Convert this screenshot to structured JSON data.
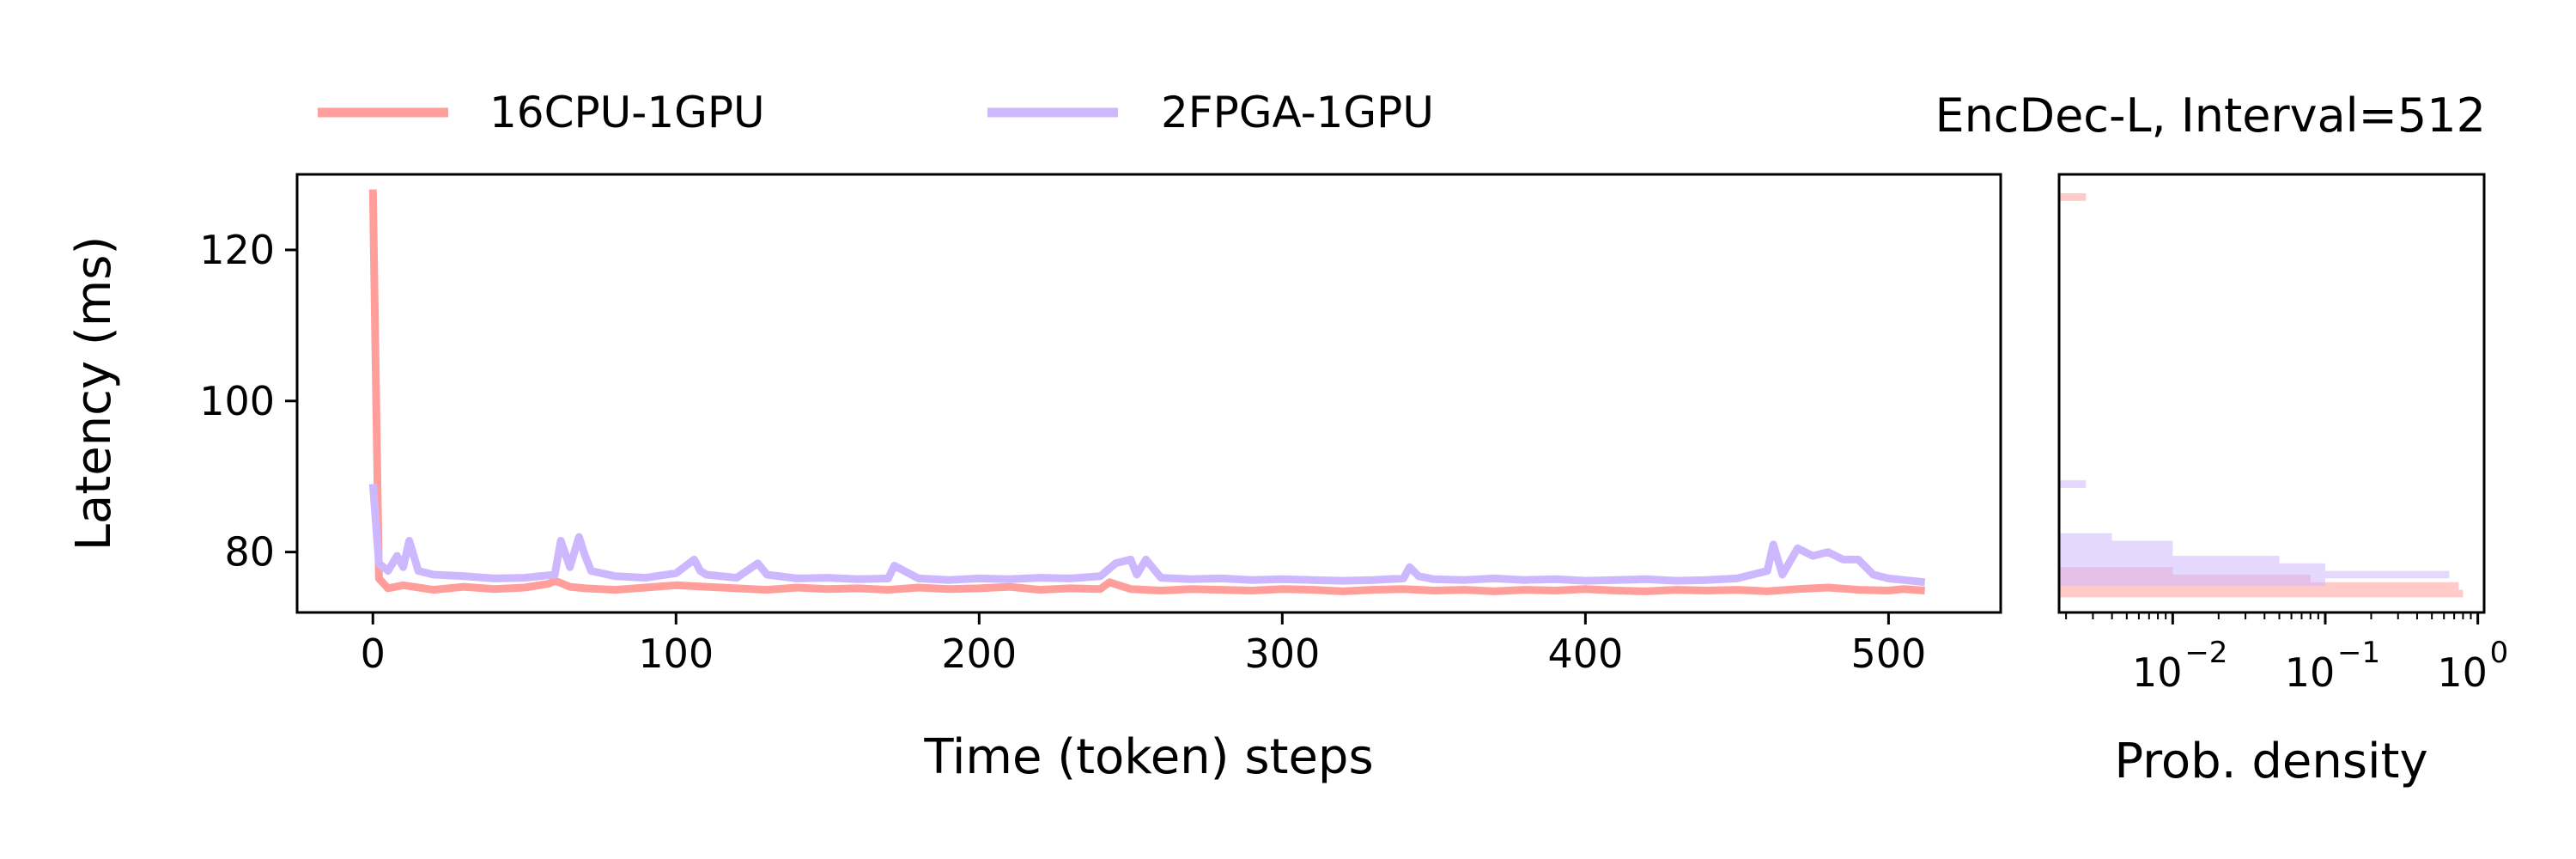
{
  "figure": {
    "title": "EncDec-L, Interval=512"
  },
  "legend": {
    "placement": "top-left",
    "entries": [
      {
        "label": "16CPU-1GPU",
        "color": "#ff9e9b"
      },
      {
        "label": "2FPGA-1GPU",
        "color": "#cdb8ff"
      }
    ]
  },
  "chart_data": [
    {
      "type": "line",
      "xlabel": "Time (token) steps",
      "ylabel": "Latency (ms)",
      "xlim": [
        -25,
        537
      ],
      "ylim": [
        72,
        130
      ],
      "xticks": [
        "0",
        "100",
        "200",
        "300",
        "400",
        "500"
      ],
      "yticks": [
        "80",
        "100",
        "120"
      ],
      "grid": false,
      "series": [
        {
          "name": "16CPU-1GPU",
          "color": "#ff9e9b",
          "x": [
            0,
            2,
            5,
            10,
            20,
            30,
            40,
            50,
            58,
            60,
            62,
            65,
            70,
            80,
            90,
            100,
            110,
            120,
            130,
            140,
            150,
            160,
            170,
            180,
            190,
            200,
            210,
            220,
            230,
            240,
            243,
            246,
            250,
            260,
            270,
            280,
            290,
            300,
            310,
            320,
            330,
            340,
            350,
            360,
            370,
            380,
            390,
            400,
            410,
            420,
            430,
            440,
            450,
            460,
            470,
            480,
            490,
            500,
            505,
            512
          ],
          "values": [
            128,
            76.5,
            75.2,
            75.6,
            75.0,
            75.4,
            75.1,
            75.3,
            75.8,
            76.2,
            75.9,
            75.4,
            75.2,
            75.0,
            75.3,
            75.6,
            75.4,
            75.2,
            75.0,
            75.3,
            75.1,
            75.2,
            75.0,
            75.3,
            75.1,
            75.2,
            75.4,
            75.0,
            75.2,
            75.1,
            76.0,
            75.6,
            75.1,
            74.9,
            75.1,
            75.0,
            74.9,
            75.1,
            75.0,
            74.8,
            75.0,
            75.1,
            74.9,
            75.0,
            74.8,
            75.0,
            74.9,
            75.1,
            74.9,
            74.8,
            75.0,
            74.9,
            75.0,
            74.8,
            75.1,
            75.3,
            75.0,
            74.9,
            75.1,
            74.9
          ]
        },
        {
          "name": "2FPGA-1GPU",
          "color": "#cdb8ff",
          "x": [
            0,
            2,
            5,
            8,
            10,
            12,
            15,
            20,
            30,
            40,
            50,
            60,
            62,
            65,
            68,
            70,
            72,
            80,
            90,
            100,
            106,
            108,
            110,
            120,
            127,
            130,
            140,
            150,
            160,
            170,
            172,
            180,
            190,
            200,
            210,
            220,
            230,
            240,
            245,
            250,
            252,
            255,
            260,
            270,
            280,
            290,
            300,
            310,
            320,
            330,
            340,
            342,
            345,
            350,
            360,
            370,
            380,
            390,
            400,
            410,
            420,
            430,
            440,
            450,
            460,
            462,
            465,
            470,
            475,
            480,
            485,
            490,
            495,
            500,
            505,
            512
          ],
          "values": [
            89,
            78.5,
            77.5,
            79.5,
            78.0,
            81.5,
            77.5,
            77.0,
            76.8,
            76.5,
            76.6,
            77.0,
            81.5,
            78.0,
            82.0,
            79.5,
            77.5,
            76.8,
            76.6,
            77.2,
            79.0,
            77.5,
            77.0,
            76.6,
            78.5,
            77.0,
            76.5,
            76.6,
            76.4,
            76.5,
            78.2,
            76.5,
            76.3,
            76.5,
            76.4,
            76.6,
            76.5,
            76.8,
            78.5,
            79.0,
            77.0,
            79.0,
            76.6,
            76.4,
            76.5,
            76.3,
            76.4,
            76.3,
            76.2,
            76.3,
            76.5,
            78.0,
            76.8,
            76.4,
            76.3,
            76.5,
            76.3,
            76.4,
            76.2,
            76.3,
            76.4,
            76.2,
            76.3,
            76.5,
            77.5,
            81.0,
            77.0,
            80.5,
            79.5,
            80.0,
            79.0,
            79.0,
            77.0,
            76.5,
            76.3,
            76.0
          ]
        }
      ]
    },
    {
      "type": "bar",
      "orientation": "horizontal",
      "xlabel": "Prob. density",
      "xscale": "log",
      "xlim": [
        0.0018,
        1.1
      ],
      "ylim": [
        72,
        130
      ],
      "xticks": [
        0.01,
        0.1,
        1
      ],
      "xtick_labels": [
        {
          "base": "10",
          "exp": "−2"
        },
        {
          "base": "10",
          "exp": "−1"
        },
        {
          "base": "10",
          "exp": "0"
        }
      ],
      "grid": false,
      "series": [
        {
          "name": "16CPU-1GPU",
          "color": "#ff9e9b",
          "bins": [
            {
              "y0": 74.0,
              "y1": 75.0,
              "density": 0.8
            },
            {
              "y0": 75.0,
              "y1": 76.0,
              "density": 0.75
            },
            {
              "y0": 76.0,
              "y1": 77.0,
              "density": 0.08
            },
            {
              "y0": 77.0,
              "y1": 78.0,
              "density": 0.01
            },
            {
              "y0": 126.5,
              "y1": 127.5,
              "density": 0.0027
            }
          ]
        },
        {
          "name": "2FPGA-1GPU",
          "color": "#cdb8ff",
          "bins": [
            {
              "y0": 75.5,
              "y1": 76.5,
              "density": 0.1
            },
            {
              "y0": 76.5,
              "y1": 77.5,
              "density": 0.65
            },
            {
              "y0": 77.5,
              "y1": 78.5,
              "density": 0.1
            },
            {
              "y0": 78.5,
              "y1": 79.5,
              "density": 0.05
            },
            {
              "y0": 79.5,
              "y1": 80.5,
              "density": 0.01
            },
            {
              "y0": 80.5,
              "y1": 81.5,
              "density": 0.01
            },
            {
              "y0": 81.5,
              "y1": 82.5,
              "density": 0.004
            },
            {
              "y0": 88.5,
              "y1": 89.5,
              "density": 0.0027
            }
          ]
        }
      ]
    }
  ]
}
